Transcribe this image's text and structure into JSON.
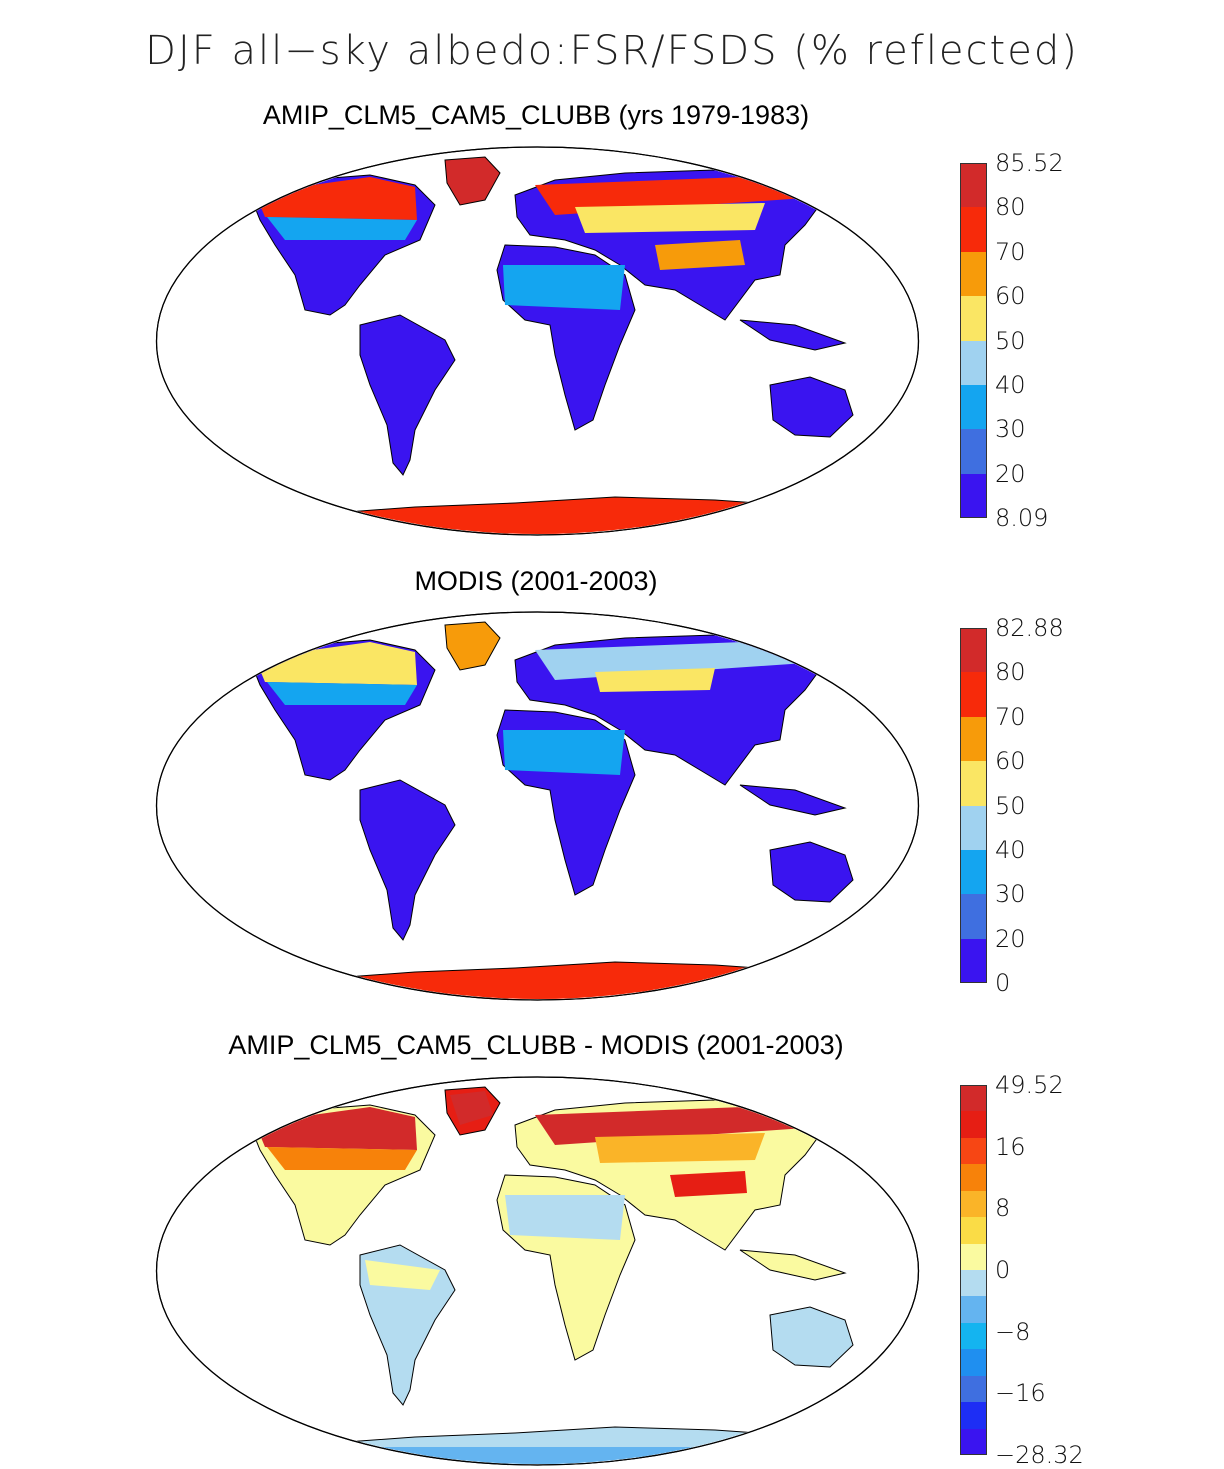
{
  "figure": {
    "title": "DJF all−sky albedo:FSR/FSDS (% reflected)"
  },
  "panels": [
    {
      "title": "AMIP_CLM5_CAM5_CLUBB (yrs 1979-1983)",
      "colorbar": {
        "colors": [
          "#3a14f0",
          "#3f6fe0",
          "#14a5f0",
          "#a0d2f0",
          "#fae664",
          "#f79b0a",
          "#f72a0a",
          "#d22a2a"
        ],
        "labels": [
          "85.52",
          "80",
          "70",
          "60",
          "50",
          "40",
          "30",
          "20",
          "8.09"
        ]
      }
    },
    {
      "title": "MODIS (2001-2003)",
      "colorbar": {
        "colors": [
          "#3a14f0",
          "#3f6fe0",
          "#14a5f0",
          "#a0d2f0",
          "#fae664",
          "#f79b0a",
          "#f72a0a",
          "#d22a2a"
        ],
        "labels": [
          "82.88",
          "80",
          "70",
          "60",
          "50",
          "40",
          "30",
          "20",
          "0"
        ]
      }
    },
    {
      "title": "AMIP_CLM5_CAM5_CLUBB - MODIS (2001-2003)",
      "colorbar": {
        "colors": [
          "#3a14f0",
          "#1d2ef5",
          "#3f6fe0",
          "#1f8ff0",
          "#14b4f0",
          "#64b4f0",
          "#b4dcf0",
          "#fafaa0",
          "#fadc46",
          "#fab428",
          "#f7820a",
          "#f74614",
          "#e61e14",
          "#d22a2a"
        ],
        "labels": [
          "49.52",
          "16",
          "8",
          "0",
          "−8",
          "−16",
          "−28.32"
        ]
      }
    }
  ]
}
